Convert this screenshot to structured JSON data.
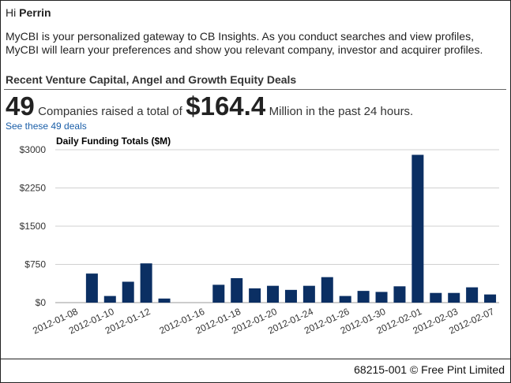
{
  "greeting": {
    "hi": "Hi",
    "name": "Perrin"
  },
  "intro_text": "MyCBI is your personalized gateway to CB Insights. As you conduct searches and view profiles, MyCBI will learn your preferences and show you relevant company, investor and acquirer profiles.",
  "section_title": "Recent Venture Capital, Angel and Growth Equity Deals",
  "summary": {
    "count": "49",
    "text1": "Companies raised a total of",
    "amount": "$164.4",
    "text2": "Million in the past 24 hours."
  },
  "deals_link": "See these 49 deals",
  "chart_data": {
    "type": "bar",
    "title": "Daily Funding Totals ($M)",
    "xlabel": "",
    "ylabel": "",
    "ylim": [
      0,
      3000
    ],
    "yticks": [
      0,
      750,
      1500,
      2250,
      3000
    ],
    "ytick_labels": [
      "$0",
      "$750",
      "$1500",
      "$2250",
      "$3000"
    ],
    "grid": true,
    "bar_color": "#0b2f63",
    "categories": [
      "2012-01-08",
      "2012-01-09",
      "2012-01-10",
      "2012-01-11",
      "2012-01-12",
      "2012-01-13",
      "2012-01-15",
      "2012-01-16",
      "2012-01-17",
      "2012-01-18",
      "2012-01-19",
      "2012-01-20",
      "2012-01-23",
      "2012-01-24",
      "2012-01-25",
      "2012-01-26",
      "2012-01-27",
      "2012-01-30",
      "2012-01-31",
      "2012-02-01",
      "2012-02-02",
      "2012-02-03",
      "2012-02-06",
      "2012-02-07"
    ],
    "values": [
      0,
      570,
      130,
      410,
      770,
      80,
      0,
      0,
      350,
      480,
      280,
      330,
      250,
      330,
      500,
      130,
      230,
      210,
      320,
      2900,
      190,
      190,
      300,
      160
    ],
    "xtick_labels": [
      "2012-01-08",
      "2012-01-10",
      "2012-01-12",
      "2012-01-16",
      "2012-01-18",
      "2012-01-20",
      "2012-01-24",
      "2012-01-26",
      "2012-01-30",
      "2012-02-01",
      "2012-02-03",
      "2012-02-07"
    ]
  },
  "footer": "68215-001 © Free Pint Limited"
}
